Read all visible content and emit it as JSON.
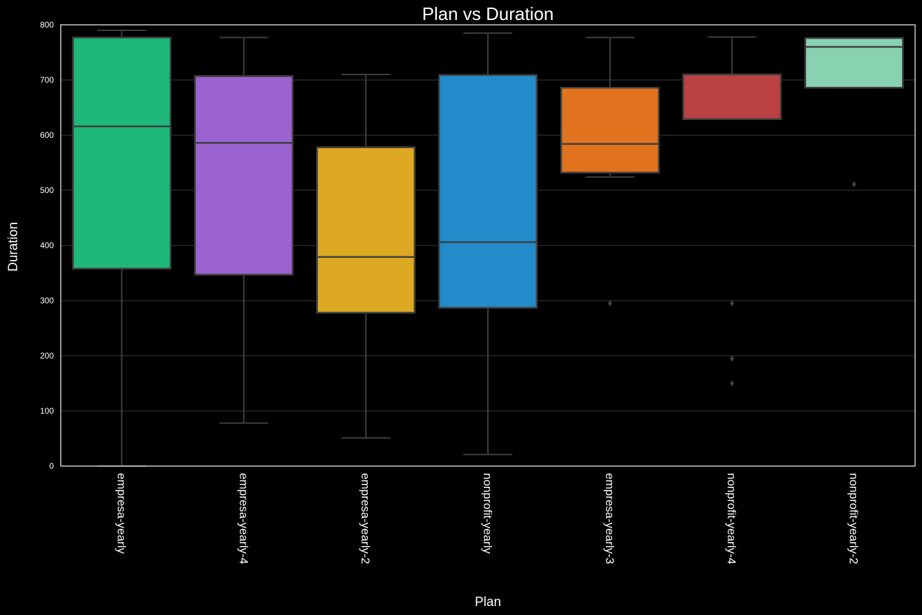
{
  "chart_data": {
    "type": "box",
    "title": "Plan vs Duration",
    "xlabel": "Plan",
    "ylabel": "Duration",
    "ylim": [
      0,
      800
    ],
    "yticks": [
      0,
      100,
      200,
      300,
      400,
      500,
      600,
      700,
      800
    ],
    "grid": true,
    "categories": [
      "empresa-yearly",
      "empresa-yearly-4",
      "empresa-yearly-2",
      "nonprofit-yearly",
      "empresa-yearly-3",
      "nonprofit-yearly-4",
      "nonprofit-yearly-2"
    ],
    "boxes": [
      {
        "category": "empresa-yearly",
        "whisker_low": 0,
        "q1": 358,
        "median": 616,
        "q3": 777,
        "whisker_high": 790,
        "outliers": [],
        "color": "#1db87a"
      },
      {
        "category": "empresa-yearly-4",
        "whisker_low": 78,
        "q1": 347,
        "median": 586,
        "q3": 707,
        "whisker_high": 777,
        "outliers": [],
        "color": "#9a63cf"
      },
      {
        "category": "empresa-yearly-2",
        "whisker_low": 51,
        "q1": 278,
        "median": 379,
        "q3": 578,
        "whisker_high": 710,
        "outliers": [],
        "color": "#dea922"
      },
      {
        "category": "nonprofit-yearly",
        "whisker_low": 21,
        "q1": 287,
        "median": 406,
        "q3": 709,
        "whisker_high": 785,
        "outliers": [],
        "color": "#228bc9"
      },
      {
        "category": "empresa-yearly-3",
        "whisker_low": 524,
        "q1": 532,
        "median": 584,
        "q3": 686,
        "whisker_high": 777,
        "outliers": [
          295
        ],
        "color": "#e1731f"
      },
      {
        "category": "nonprofit-yearly-4",
        "whisker_low": 629,
        "q1": 629,
        "median": 629,
        "q3": 710,
        "whisker_high": 778,
        "outliers": [
          295,
          195,
          150
        ],
        "color": "#bb4143"
      },
      {
        "category": "nonprofit-yearly-2",
        "whisker_low": 686,
        "q1": 686,
        "median": 760,
        "q3": 776,
        "whisker_high": 776,
        "outliers": [
          511
        ],
        "color": "#88d2b2"
      }
    ],
    "style_colors": {
      "background": "#000000",
      "grid": "#3c3c3c",
      "box_edge": "#3f3f3f",
      "text": "#ffffff",
      "frame": "#ffffff"
    }
  }
}
